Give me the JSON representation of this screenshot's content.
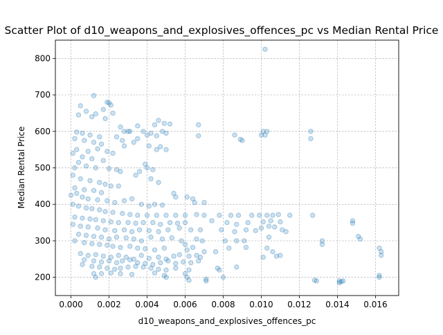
{
  "chart_data": {
    "type": "scatter",
    "title": "Scatter Plot of d10_weapons_and_explosives_offences_pc vs Median Rental Price",
    "xlabel": "d10_weapons_and_explosives_offences_pc",
    "ylabel": "Median Rental Price",
    "xlim": [
      -0.00082,
      0.01722
    ],
    "ylim": [
      150,
      850
    ],
    "xticks": [
      "0.000",
      "0.002",
      "0.004",
      "0.006",
      "0.008",
      "0.010",
      "0.012",
      "0.014",
      "0.016"
    ],
    "yticks": [
      "200",
      "300",
      "400",
      "500",
      "600",
      "700",
      "800"
    ],
    "grid": true,
    "color": "#1f77b4",
    "series": [
      {
        "points": [
          [
            0.0102,
            825
          ],
          [
            0.0012,
            698
          ],
          [
            0.0019,
            680
          ],
          [
            0.002,
            678
          ],
          [
            0.0021,
            672
          ],
          [
            0.0005,
            670
          ],
          [
            0.0017,
            660
          ],
          [
            0.0008,
            655
          ],
          [
            0.0022,
            650
          ],
          [
            0.0013,
            648
          ],
          [
            0.0004,
            645
          ],
          [
            0.0011,
            640
          ],
          [
            0.0018,
            635
          ],
          [
            0.0046,
            630
          ],
          [
            0.0049,
            622
          ],
          [
            0.0052,
            620
          ],
          [
            0.0044,
            618
          ],
          [
            0.0035,
            615
          ],
          [
            0.0067,
            618
          ],
          [
            0.0026,
            612
          ],
          [
            0.003,
            600
          ],
          [
            0.0031,
            600
          ],
          [
            0.0028,
            600
          ],
          [
            0.0048,
            600
          ],
          [
            0.0067,
            588
          ],
          [
            0.0086,
            590
          ],
          [
            0.0089,
            578
          ],
          [
            0.009,
            575
          ],
          [
            0.01,
            590
          ],
          [
            0.0101,
            600
          ],
          [
            0.0103,
            600
          ],
          [
            0.0102,
            590
          ],
          [
            0.0126,
            600
          ],
          [
            0.0126,
            580
          ],
          [
            0.0003,
            598
          ],
          [
            0.0006,
            595
          ],
          [
            0.001,
            590
          ],
          [
            0.0015,
            585
          ],
          [
            0.0024,
            585
          ],
          [
            0.0038,
            600
          ],
          [
            0.004,
            590
          ],
          [
            0.0042,
            595
          ],
          [
            0.0045,
            588
          ],
          [
            0.005,
            595
          ],
          [
            0.0035,
            580
          ],
          [
            0.0027,
            575
          ],
          [
            0.0033,
            570
          ],
          [
            0.0041,
            560
          ],
          [
            0.0047,
            558
          ],
          [
            0.005,
            550
          ],
          [
            0.0045,
            550
          ],
          [
            0.0028,
            560
          ],
          [
            0.0007,
            575
          ],
          [
            0.0002,
            580
          ],
          [
            0.0012,
            570
          ],
          [
            0.0016,
            565
          ],
          [
            0.0003,
            550
          ],
          [
            0.0001,
            540
          ],
          [
            0.0009,
            545
          ],
          [
            0.0014,
            552
          ],
          [
            0.0019,
            545
          ],
          [
            0.0022,
            540
          ],
          [
            0.0006,
            530
          ],
          [
            0.0011,
            525
          ],
          [
            0.0017,
            520
          ],
          [
            0.0004,
            515
          ],
          [
            0.0008,
            505
          ],
          [
            0.0013,
            500
          ],
          [
            0.0002,
            500
          ],
          [
            0.002,
            498
          ],
          [
            0.0024,
            495
          ],
          [
            0.0026,
            490
          ],
          [
            0.0039,
            510
          ],
          [
            0.004,
            500
          ],
          [
            0.0043,
            495
          ],
          [
            0.0036,
            490
          ],
          [
            0.0034,
            480
          ],
          [
            0.0042,
            470
          ],
          [
            0.0046,
            460
          ],
          [
            0.0001,
            480
          ],
          [
            0.0005,
            470
          ],
          [
            0.001,
            465
          ],
          [
            0.0015,
            460
          ],
          [
            0.0018,
            455
          ],
          [
            0.0021,
            450
          ],
          [
            0.0025,
            450
          ],
          [
            0.0002,
            445
          ],
          [
            0.0007,
            440
          ],
          [
            0.0012,
            438
          ],
          [
            0.0016,
            432
          ],
          [
            0.0003,
            430
          ],
          [
            0.0,
            425
          ],
          [
            0.0006,
            420
          ],
          [
            0.0009,
            415
          ],
          [
            0.0014,
            412
          ],
          [
            0.0019,
            410
          ],
          [
            0.0023,
            405
          ],
          [
            0.0028,
            410
          ],
          [
            0.0032,
            415
          ],
          [
            0.0037,
            400
          ],
          [
            0.0041,
            395
          ],
          [
            0.0044,
            400
          ],
          [
            0.0048,
            398
          ],
          [
            0.0054,
            430
          ],
          [
            0.0055,
            420
          ],
          [
            0.0061,
            420
          ],
          [
            0.0064,
            415
          ],
          [
            0.0065,
            405
          ],
          [
            0.007,
            405
          ],
          [
            0.0001,
            400
          ],
          [
            0.0004,
            395
          ],
          [
            0.0008,
            390
          ],
          [
            0.0011,
            388
          ],
          [
            0.0015,
            385
          ],
          [
            0.0018,
            380
          ],
          [
            0.0022,
            378
          ],
          [
            0.0027,
            375
          ],
          [
            0.0031,
            372
          ],
          [
            0.0035,
            370
          ],
          [
            0.004,
            370
          ],
          [
            0.0045,
            370
          ],
          [
            0.005,
            370
          ],
          [
            0.0055,
            370
          ],
          [
            0.006,
            370
          ],
          [
            0.0066,
            372
          ],
          [
            0.007,
            370
          ],
          [
            0.0078,
            370
          ],
          [
            0.0084,
            370
          ],
          [
            0.0088,
            370
          ],
          [
            0.0095,
            370
          ],
          [
            0.0099,
            370
          ],
          [
            0.0103,
            370
          ],
          [
            0.0106,
            370
          ],
          [
            0.0109,
            372
          ],
          [
            0.0115,
            370
          ],
          [
            0.0127,
            370
          ],
          [
            0.0002,
            365
          ],
          [
            0.0006,
            362
          ],
          [
            0.001,
            360
          ],
          [
            0.0013,
            358
          ],
          [
            0.0017,
            355
          ],
          [
            0.0021,
            352
          ],
          [
            0.0025,
            350
          ],
          [
            0.003,
            350
          ],
          [
            0.0034,
            348
          ],
          [
            0.0038,
            350
          ],
          [
            0.0043,
            350
          ],
          [
            0.0047,
            345
          ],
          [
            0.0052,
            350
          ],
          [
            0.0056,
            348
          ],
          [
            0.006,
            350
          ],
          [
            0.0074,
            355
          ],
          [
            0.0082,
            350
          ],
          [
            0.0087,
            345
          ],
          [
            0.0093,
            350
          ],
          [
            0.0101,
            352
          ],
          [
            0.0105,
            355
          ],
          [
            0.011,
            352
          ],
          [
            0.0148,
            355
          ],
          [
            0.0148,
            348
          ],
          [
            0.0001,
            345
          ],
          [
            0.0005,
            340
          ],
          [
            0.0009,
            338
          ],
          [
            0.0014,
            335
          ],
          [
            0.0018,
            330
          ],
          [
            0.0023,
            328
          ],
          [
            0.0028,
            330
          ],
          [
            0.0032,
            325
          ],
          [
            0.0036,
            330
          ],
          [
            0.0041,
            328
          ],
          [
            0.0046,
            325
          ],
          [
            0.0051,
            330
          ],
          [
            0.0057,
            335
          ],
          [
            0.0063,
            330
          ],
          [
            0.0068,
            330
          ],
          [
            0.0079,
            330
          ],
          [
            0.0086,
            325
          ],
          [
            0.0092,
            330
          ],
          [
            0.0097,
            328
          ],
          [
            0.01,
            335
          ],
          [
            0.0104,
            340
          ],
          [
            0.0107,
            338
          ],
          [
            0.0111,
            330
          ],
          [
            0.0113,
            325
          ],
          [
            0.0004,
            318
          ],
          [
            0.0008,
            315
          ],
          [
            0.0012,
            312
          ],
          [
            0.0016,
            310
          ],
          [
            0.002,
            305
          ],
          [
            0.0024,
            310
          ],
          [
            0.0029,
            308
          ],
          [
            0.0033,
            305
          ],
          [
            0.0037,
            300
          ],
          [
            0.0042,
            310
          ],
          [
            0.0048,
            305
          ],
          [
            0.0053,
            308
          ],
          [
            0.0058,
            300
          ],
          [
            0.0066,
            305
          ],
          [
            0.0069,
            300
          ],
          [
            0.0081,
            300
          ],
          [
            0.0087,
            300
          ],
          [
            0.0091,
            300
          ],
          [
            0.0104,
            310
          ],
          [
            0.0132,
            300
          ],
          [
            0.0132,
            290
          ],
          [
            0.0151,
            312
          ],
          [
            0.0152,
            305
          ],
          [
            0.0002,
            300
          ],
          [
            0.0007,
            295
          ],
          [
            0.0011,
            292
          ],
          [
            0.0015,
            290
          ],
          [
            0.0019,
            288
          ],
          [
            0.0022,
            285
          ],
          [
            0.0026,
            282
          ],
          [
            0.0031,
            285
          ],
          [
            0.0035,
            280
          ],
          [
            0.0039,
            278
          ],
          [
            0.0044,
            275
          ],
          [
            0.0049,
            280
          ],
          [
            0.006,
            290
          ],
          [
            0.0061,
            275
          ],
          [
            0.0064,
            282
          ],
          [
            0.007,
            270
          ],
          [
            0.0076,
            270
          ],
          [
            0.0083,
            280
          ],
          [
            0.0092,
            282
          ],
          [
            0.0103,
            280
          ],
          [
            0.0106,
            270
          ],
          [
            0.0162,
            280
          ],
          [
            0.0163,
            270
          ],
          [
            0.0005,
            265
          ],
          [
            0.0009,
            260
          ],
          [
            0.0013,
            262
          ],
          [
            0.0017,
            258
          ],
          [
            0.0021,
            255
          ],
          [
            0.0025,
            260
          ],
          [
            0.0029,
            255
          ],
          [
            0.0033,
            250
          ],
          [
            0.0037,
            260
          ],
          [
            0.0041,
            252
          ],
          [
            0.0046,
            255
          ],
          [
            0.005,
            250
          ],
          [
            0.0054,
            258
          ],
          [
            0.0057,
            262
          ],
          [
            0.0062,
            258
          ],
          [
            0.0066,
            260
          ],
          [
            0.0068,
            255
          ],
          [
            0.0101,
            255
          ],
          [
            0.0108,
            258
          ],
          [
            0.011,
            260
          ],
          [
            0.0163,
            260
          ],
          [
            0.0007,
            248
          ],
          [
            0.0012,
            245
          ],
          [
            0.0016,
            242
          ],
          [
            0.002,
            245
          ],
          [
            0.0024,
            240
          ],
          [
            0.0027,
            245
          ],
          [
            0.0031,
            248
          ],
          [
            0.0035,
            240
          ],
          [
            0.0039,
            238
          ],
          [
            0.0043,
            235
          ],
          [
            0.0047,
            240
          ],
          [
            0.0051,
            245
          ],
          [
            0.0055,
            238
          ],
          [
            0.0059,
            242
          ],
          [
            0.0063,
            240
          ],
          [
            0.0067,
            245
          ],
          [
            0.0006,
            235
          ],
          [
            0.0011,
            230
          ],
          [
            0.0015,
            228
          ],
          [
            0.0019,
            225
          ],
          [
            0.0023,
            222
          ],
          [
            0.0026,
            225
          ],
          [
            0.003,
            228
          ],
          [
            0.0034,
            230
          ],
          [
            0.0038,
            228
          ],
          [
            0.0042,
            225
          ],
          [
            0.0046,
            222
          ],
          [
            0.005,
            220
          ],
          [
            0.0055,
            225
          ],
          [
            0.0062,
            220
          ],
          [
            0.0077,
            225
          ],
          [
            0.0078,
            220
          ],
          [
            0.0087,
            228
          ],
          [
            0.0012,
            210
          ],
          [
            0.0016,
            210
          ],
          [
            0.0021,
            212
          ],
          [
            0.0026,
            210
          ],
          [
            0.0032,
            208
          ],
          [
            0.0044,
            212
          ],
          [
            0.0049,
            205
          ],
          [
            0.006,
            210
          ],
          [
            0.0061,
            200
          ],
          [
            0.0071,
            195
          ],
          [
            0.008,
            200
          ],
          [
            0.005,
            200
          ],
          [
            0.0013,
            200
          ],
          [
            0.0062,
            192
          ],
          [
            0.0071,
            190
          ],
          [
            0.0128,
            192
          ],
          [
            0.0129,
            190
          ],
          [
            0.0141,
            190
          ],
          [
            0.0142,
            188
          ],
          [
            0.0143,
            190
          ],
          [
            0.0162,
            200
          ],
          [
            0.0162,
            205
          ],
          [
            0.0141,
            185
          ]
        ]
      }
    ]
  }
}
